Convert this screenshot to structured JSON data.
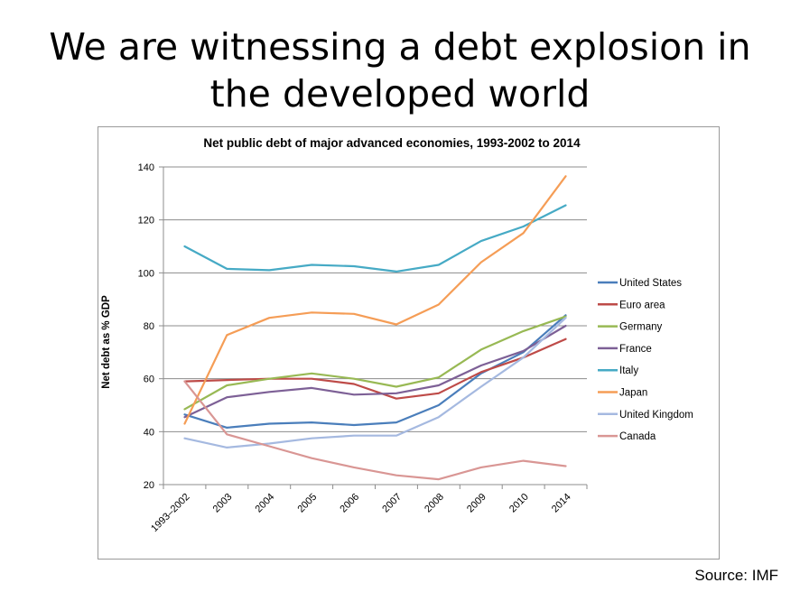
{
  "slide": {
    "title_line1": "We are witnessing a debt explosion in",
    "title_line2": "the developed world",
    "source": "Source: IMF"
  },
  "chart_data": {
    "type": "line",
    "title": "Net public debt of major advanced economies, 1993-2002 to 2014",
    "xlabel": "",
    "ylabel": "Net debt as % GDP",
    "categories": [
      "1993–2002",
      "2003",
      "2004",
      "2005",
      "2006",
      "2007",
      "2008",
      "2009",
      "2010",
      "2014"
    ],
    "ylim": [
      20,
      140
    ],
    "yticks": [
      20,
      40,
      60,
      80,
      100,
      120,
      140
    ],
    "grid": true,
    "legend": "right",
    "series": [
      {
        "name": "United States",
        "color": "#4a7ebb",
        "values": [
          46.5,
          41.5,
          43,
          43.5,
          42.5,
          43.5,
          50,
          62,
          70,
          84
        ]
      },
      {
        "name": "Euro area",
        "color": "#be4b48",
        "values": [
          59,
          59.5,
          60,
          60,
          58,
          52.5,
          54.5,
          62.5,
          68,
          75
        ]
      },
      {
        "name": "Germany",
        "color": "#98b954",
        "values": [
          48.5,
          57.5,
          60,
          62,
          60,
          57,
          60.5,
          71,
          78,
          83.5
        ]
      },
      {
        "name": "France",
        "color": "#7d6096",
        "values": [
          45.5,
          53,
          55,
          56.5,
          54,
          54.5,
          57.5,
          65,
          70.5,
          80
        ]
      },
      {
        "name": "Italy",
        "color": "#46aac5",
        "values": [
          110,
          101.5,
          101,
          103,
          102.5,
          100.5,
          103,
          112,
          117.5,
          125.5
        ]
      },
      {
        "name": "Japan",
        "color": "#f59d56",
        "values": [
          43,
          76.5,
          83,
          85,
          84.5,
          80.5,
          88,
          104,
          115,
          136.5
        ]
      },
      {
        "name": "United Kingdom",
        "color": "#a5b9e0",
        "values": [
          37.5,
          34,
          35.5,
          37.5,
          38.5,
          38.5,
          45.5,
          57,
          68,
          83
        ]
      },
      {
        "name": "Canada",
        "color": "#d99694",
        "values": [
          59,
          39,
          34.5,
          30,
          26.5,
          23.5,
          22,
          26.5,
          29,
          27
        ]
      }
    ]
  }
}
